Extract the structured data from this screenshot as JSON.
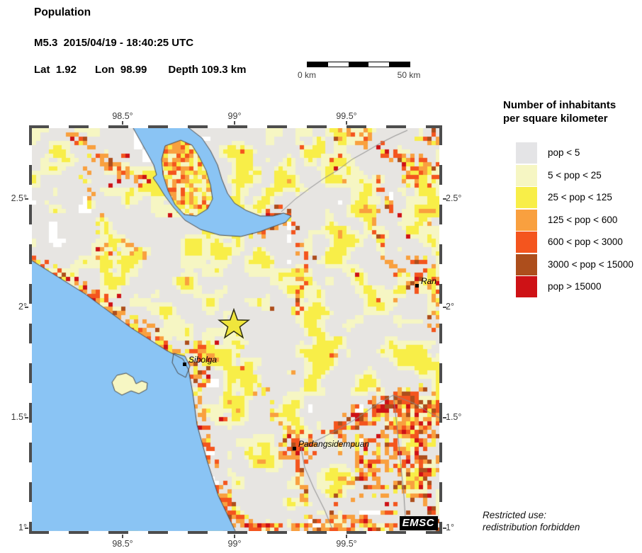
{
  "header": {
    "title": "Population",
    "event": "M5.3  2015/04/19 - 18:40:25 UTC",
    "lat": "Lat  1.92",
    "lon": "Lon  98.99",
    "depth": "Depth 109.3 km"
  },
  "scalebar": {
    "left": "0 km",
    "right": "50 km"
  },
  "legend": {
    "title1": "Number of inhabitants",
    "title2": "per square kilometer",
    "items": [
      {
        "label": "pop < 5",
        "color": "#e4e4e6"
      },
      {
        "label": "5 < pop < 25",
        "color": "#f6f6c3"
      },
      {
        "label": "25 < pop < 125",
        "color": "#f8ee48"
      },
      {
        "label": "125 < pop < 600",
        "color": "#f9a03f"
      },
      {
        "label": "600 < pop < 3000",
        "color": "#f4551e"
      },
      {
        "label": "3000 < pop < 15000",
        "color": "#ad4e1c"
      },
      {
        "label": "pop > 15000",
        "color": "#ce1216"
      }
    ]
  },
  "map": {
    "sea_color": "#8ac4f4",
    "land_color": "#e7e5e2",
    "white_color": "#ffffff",
    "outline_color": "#4a4a4a",
    "road_color": "#8a8a8a",
    "logo": "EMSC",
    "star": {
      "fx": 0.4957,
      "fy": 0.4868,
      "fill": "#f0e63c",
      "outline": "#2e2e12"
    },
    "cities": [
      {
        "name": "Sibolga",
        "fx": 0.374,
        "fy": 0.585
      },
      {
        "name": "Padangsidempuan",
        "fx": 0.6435,
        "fy": 0.794
      },
      {
        "name": "Ran",
        "fx": 0.9443,
        "fy": 0.39
      }
    ],
    "lon_ticks": [
      {
        "label": "98.5°",
        "f": 0.2226
      },
      {
        "label": "99°",
        "f": 0.4974
      },
      {
        "label": "99.5°",
        "f": 0.7722
      }
    ],
    "lat_ticks": [
      {
        "label": "2.5°",
        "f": 0.176
      },
      {
        "label": "2°",
        "f": 0.445
      },
      {
        "label": "1.5°",
        "f": 0.719
      },
      {
        "label": "1°",
        "f": 0.993
      }
    ]
  },
  "footer": {
    "line1": "Restricted use:",
    "line2": "redistribution forbidden"
  }
}
